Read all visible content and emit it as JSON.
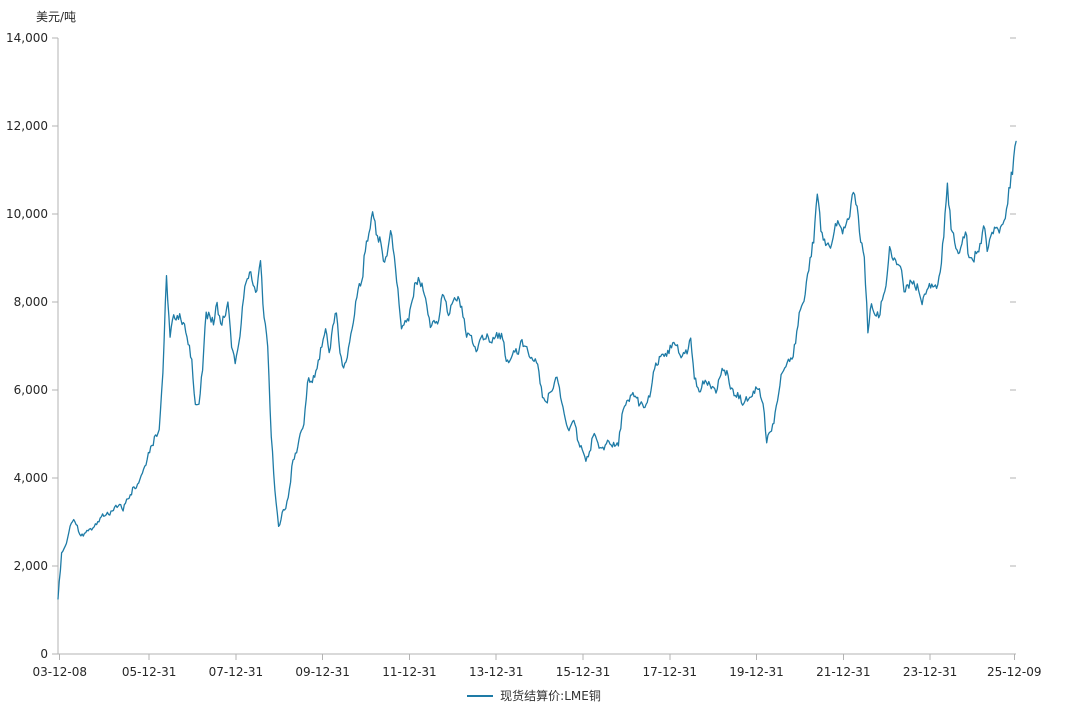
{
  "title": "美元/吨",
  "legend": {
    "label": "现货结算价:LME铜"
  },
  "colors": {
    "line": "#1e7ba6",
    "axis": "#b3b3b3",
    "text": "#262626"
  },
  "chart_data": {
    "type": "line",
    "title": "",
    "ylabel": "美元/吨",
    "xlabel": "",
    "ylim": [
      0,
      14000
    ],
    "grid": false,
    "legend_position": "bottom-center",
    "ytick_values": [
      0,
      2000,
      4000,
      6000,
      8000,
      10000,
      12000,
      14000
    ],
    "ytick_labels": [
      "0",
      "2,000",
      "4,000",
      "6,000",
      "8,000",
      "10,000",
      "12,000",
      "14,000"
    ],
    "xtick_t": [
      2003.94,
      2006.0,
      2008.0,
      2010.0,
      2012.0,
      2014.0,
      2016.0,
      2018.0,
      2020.0,
      2022.0,
      2024.0,
      2025.94
    ],
    "xtick_labels": [
      "03-12-08",
      "05-12-31",
      "07-12-31",
      "09-12-31",
      "11-12-31",
      "13-12-31",
      "15-12-31",
      "17-12-31",
      "19-12-31",
      "21-12-31",
      "23-12-31",
      "25-12-09"
    ],
    "xlim": [
      2003.9,
      2025.98
    ],
    "series": [
      {
        "name": "现货结算价:LME铜",
        "color": "#1e7ba6",
        "x_start": 2003.9,
        "x_step": 0.0833333,
        "values": [
          1250,
          2300,
          2450,
          2760,
          3010,
          2940,
          2720,
          2680,
          2810,
          2850,
          2890,
          3010,
          3120,
          3140,
          3170,
          3250,
          3380,
          3400,
          3250,
          3520,
          3620,
          3800,
          3860,
          4060,
          4270,
          4580,
          4740,
          4980,
          5100,
          6390,
          8600,
          7200,
          7710,
          7690,
          7600,
          7500,
          7030,
          6700,
          5670,
          5680,
          6450,
          7770,
          7680,
          7480,
          7990,
          7510,
          7650,
          8000,
          6970,
          6600,
          7060,
          7890,
          8440,
          8680,
          8380,
          8260,
          8940,
          7640,
          6990,
          4930,
          3720,
          2900,
          3220,
          3310,
          3750,
          4410,
          4570,
          5010,
          5220,
          6170,
          6200,
          6290,
          6680,
          6980,
          7390,
          6850,
          7460,
          7750,
          6840,
          6500,
          6740,
          7280,
          7710,
          8290,
          8470,
          9150,
          9560,
          10050,
          9530,
          9480,
          8930,
          9050,
          9620,
          9040,
          8300,
          7390,
          7580,
          7570,
          8040,
          8440,
          8470,
          8260,
          7920,
          7420,
          7580,
          7500,
          8070,
          8060,
          7690,
          7960,
          8050,
          8060,
          7660,
          7200,
          7240,
          7000,
          6910,
          7190,
          7160,
          7200,
          7070,
          7210,
          7290,
          7150,
          6650,
          6670,
          6890,
          6820,
          7110,
          7000,
          6870,
          6740,
          6710,
          6420,
          5830,
          5730,
          5940,
          6040,
          6290,
          5830,
          5460,
          5130,
          5220,
          5220,
          4800,
          4640,
          4380,
          4600,
          4950,
          4870,
          4690,
          4640,
          4860,
          4750,
          4720,
          4730,
          5450,
          5660,
          5740,
          5940,
          5820,
          5680,
          5600,
          5720,
          5990,
          6480,
          6580,
          6810,
          6830,
          6830,
          7070,
          7010,
          6800,
          6850,
          6820,
          7180,
          6250,
          6050,
          6050,
          6220,
          6190,
          6080,
          5930,
          6280,
          6440,
          6440,
          6020,
          5870,
          5940,
          5710,
          5750,
          5790,
          5860,
          6070,
          6030,
          5690,
          4800,
          5050,
          5240,
          5750,
          6350,
          6500,
          6700,
          6700,
          7060,
          7760,
          7970,
          8460,
          9010,
          9340,
          10450,
          9610,
          9430,
          9340,
          9320,
          9780,
          9770,
          9550,
          9780,
          9940,
          10490,
          10180,
          9360,
          9020,
          7300,
          7960,
          7700,
          7640,
          8050,
          8370,
          9260,
          8950,
          8850,
          8810,
          8230,
          8390,
          8460,
          8350,
          8270,
          7940,
          8180,
          8420,
          8340,
          8310,
          8680,
          9480,
          10700,
          9650,
          9350,
          9100,
          9320,
          9590,
          9010,
          8950,
          9100,
          9330,
          9730,
          9150,
          9500,
          9700,
          9650,
          9750,
          9900,
          10600,
          10900,
          11650
        ]
      }
    ]
  }
}
